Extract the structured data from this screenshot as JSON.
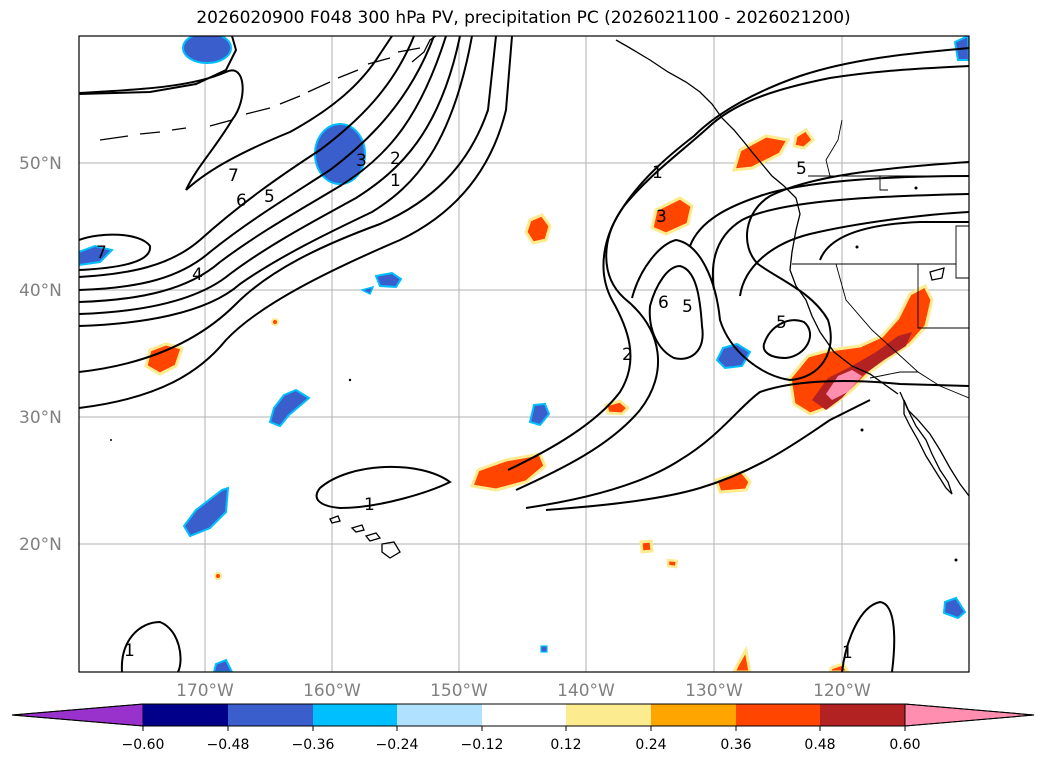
{
  "title": "2026020900 F048 300 hPa PV, precipitation PC (2026021100 - 2026021200)",
  "lat_labels": [
    "50°N",
    "40°N",
    "30°N",
    "20°N"
  ],
  "lon_labels": [
    "170°W",
    "160°W",
    "150°W",
    "140°W",
    "130°W",
    "120°W"
  ],
  "colorbar": {
    "ticks": [
      "−0.60",
      "−0.48",
      "−0.36",
      "−0.24",
      "−0.12",
      "0.12",
      "0.24",
      "0.36",
      "0.48",
      "0.60"
    ],
    "colors": [
      "#9932cc",
      "#00008b",
      "#3a5fcd",
      "#00bfff",
      "#b0e2ff",
      "#ffffff",
      "#fdeb8f",
      "#ffa500",
      "#ff4500",
      "#b22222",
      "#ff8eb0"
    ]
  },
  "contour_labels": {
    "c1": "7",
    "c2": "6",
    "c3": "5",
    "c4": "3",
    "c5": "2",
    "c6": "1",
    "c7": "7",
    "c8": "4",
    "c9": "1",
    "c10": "3",
    "c11": "6",
    "c12": "5",
    "c13": "5",
    "c14": "2",
    "c15": "1",
    "c16": "1",
    "c17": "1",
    "c18": "5"
  },
  "palette": {
    "blue_fill": "#3a5fcd",
    "blue_edge": "#00bfff",
    "orange_fill": "#ff4500",
    "orange_edge": "#ffa500",
    "yellow_edge": "#fdeb8f",
    "dark_red": "#b22222",
    "pink": "#ff8eb0"
  }
}
